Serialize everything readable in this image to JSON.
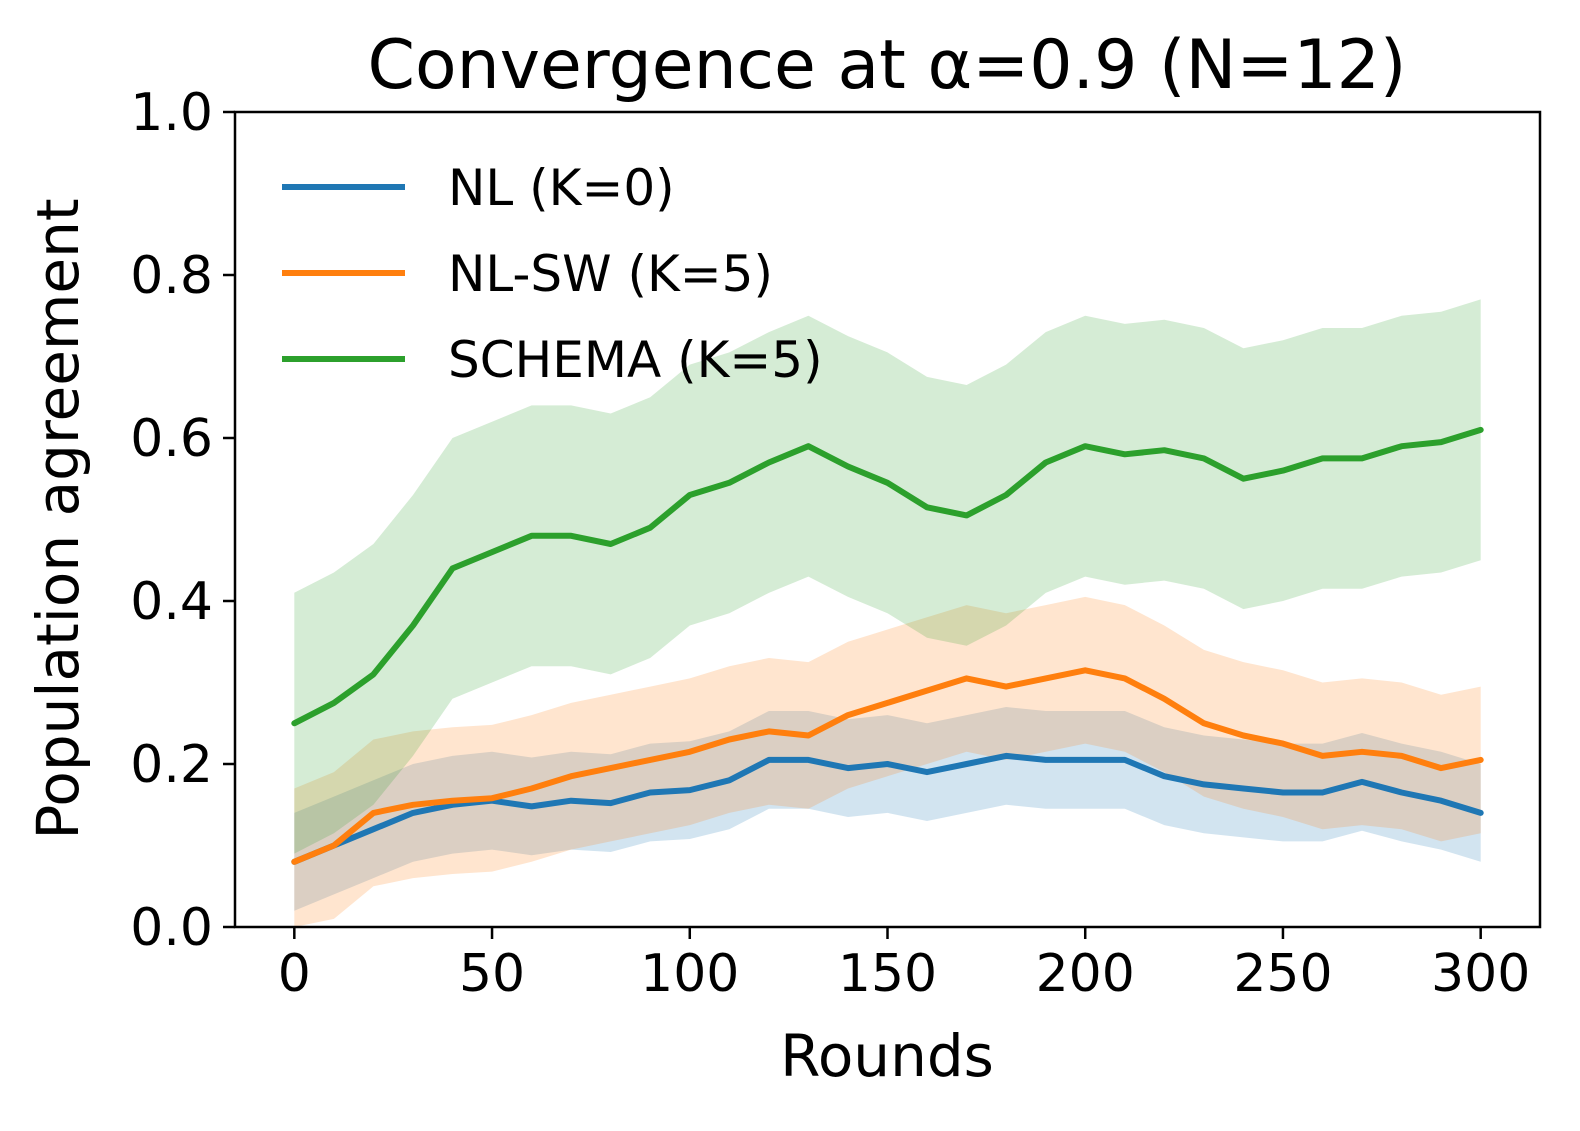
{
  "chart_data": {
    "type": "line",
    "title": "Convergence at α=0.9 (N=12)",
    "xlabel": "Rounds",
    "ylabel": "Population agreement",
    "xlim": [
      -15,
      315
    ],
    "ylim": [
      0.0,
      1.0
    ],
    "x_ticks": [
      0,
      50,
      100,
      150,
      200,
      250,
      300
    ],
    "x_tick_labels": [
      "0",
      "50",
      "100",
      "150",
      "200",
      "250",
      "300"
    ],
    "y_ticks": [
      0.0,
      0.2,
      0.4,
      0.6,
      0.8,
      1.0
    ],
    "y_tick_labels": [
      "0.0",
      "0.2",
      "0.4",
      "0.6",
      "0.8",
      "1.0"
    ],
    "grid": false,
    "legend_position": "upper-left",
    "series": [
      {
        "name": "NL (K=0)",
        "color": "#1f77b4",
        "band_half_width": 0.06,
        "x": [
          0,
          10,
          20,
          30,
          40,
          50,
          60,
          70,
          80,
          90,
          100,
          110,
          120,
          130,
          140,
          150,
          160,
          170,
          180,
          190,
          200,
          210,
          220,
          230,
          240,
          250,
          260,
          270,
          280,
          290,
          300
        ],
        "values": [
          0.08,
          0.1,
          0.12,
          0.14,
          0.15,
          0.155,
          0.148,
          0.155,
          0.152,
          0.165,
          0.168,
          0.18,
          0.205,
          0.205,
          0.195,
          0.2,
          0.19,
          0.2,
          0.21,
          0.205,
          0.205,
          0.205,
          0.185,
          0.175,
          0.17,
          0.165,
          0.165,
          0.178,
          0.165,
          0.155,
          0.14
        ]
      },
      {
        "name": "NL-SW (K=5)",
        "color": "#ff7f0e",
        "band_half_width": 0.09,
        "x": [
          0,
          10,
          20,
          30,
          40,
          50,
          60,
          70,
          80,
          90,
          100,
          110,
          120,
          130,
          140,
          150,
          160,
          170,
          180,
          190,
          200,
          210,
          220,
          230,
          240,
          250,
          260,
          270,
          280,
          290,
          300
        ],
        "values": [
          0.08,
          0.1,
          0.14,
          0.15,
          0.155,
          0.158,
          0.17,
          0.185,
          0.195,
          0.205,
          0.215,
          0.23,
          0.24,
          0.235,
          0.26,
          0.275,
          0.29,
          0.305,
          0.295,
          0.305,
          0.315,
          0.305,
          0.28,
          0.25,
          0.235,
          0.225,
          0.21,
          0.215,
          0.21,
          0.195,
          0.205
        ]
      },
      {
        "name": "SCHEMA (K=5)",
        "color": "#2ca02c",
        "band_half_width": 0.16,
        "x": [
          0,
          10,
          20,
          30,
          40,
          50,
          60,
          70,
          80,
          90,
          100,
          110,
          120,
          130,
          140,
          150,
          160,
          170,
          180,
          190,
          200,
          210,
          220,
          230,
          240,
          250,
          260,
          270,
          280,
          290,
          300
        ],
        "values": [
          0.25,
          0.275,
          0.31,
          0.37,
          0.44,
          0.46,
          0.48,
          0.48,
          0.47,
          0.49,
          0.53,
          0.545,
          0.57,
          0.59,
          0.565,
          0.545,
          0.515,
          0.505,
          0.53,
          0.57,
          0.59,
          0.58,
          0.585,
          0.575,
          0.55,
          0.56,
          0.575,
          0.575,
          0.59,
          0.595,
          0.61
        ]
      }
    ]
  }
}
